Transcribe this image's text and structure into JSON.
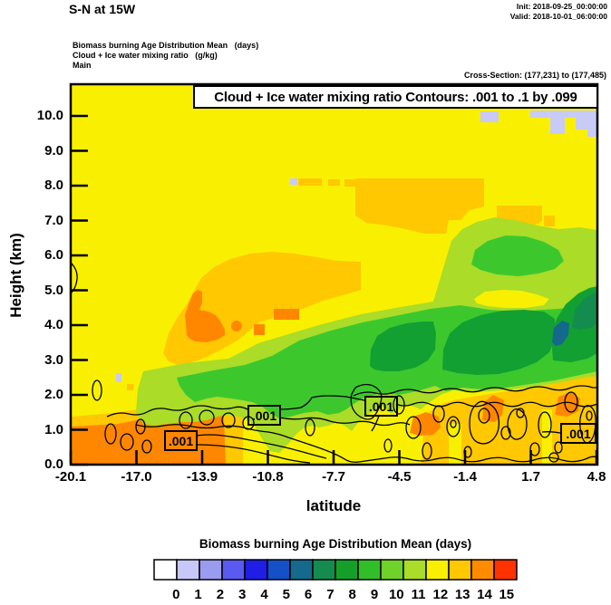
{
  "header": {
    "title": "S-N at 15W",
    "init": "Init: 2018-09-25_00:00:00",
    "valid": "Valid: 2018-10-01_06:00:00",
    "field_mean": "Biomass burning Age Distribution Mean   (days)",
    "field_contour": "Cloud + Ice water mixing ratio   (g/kg)",
    "grid": "Main",
    "cross_section": "Cross-Section: (177,231) to (177,485)"
  },
  "plot": {
    "title": "Cloud + Ice water mixing ratio Contours: .001 to .1 by .099",
    "xlabel": "latitude",
    "ylabel": "Height (km)",
    "x_tick_labels": [
      "-20.1",
      "-17.0",
      "-13.9",
      "-10.8",
      "-7.7",
      "-4.5",
      "-1.4",
      "1.7",
      "4.8"
    ],
    "y_tick_labels": [
      "0.0",
      "1.0",
      "2.0",
      "3.0",
      "4.0",
      "5.0",
      "6.0",
      "7.0",
      "8.0",
      "9.0",
      "10.0"
    ],
    "contour_label": ".001"
  },
  "colorbar": {
    "title": "Biomass burning Age Distribution Mean  (days)",
    "tick_labels": [
      "0",
      "1",
      "2",
      "3",
      "4",
      "5",
      "6",
      "7",
      "8",
      "9",
      "10",
      "11",
      "12",
      "13",
      "14",
      "15"
    ],
    "colors": [
      "#FFFFFF",
      "#C8C8F8",
      "#9B9BF0",
      "#5A5AF0",
      "#1E1EE6",
      "#1450C8",
      "#14698C",
      "#148C50",
      "#14A028",
      "#32BE28",
      "#6ED228",
      "#AADC28",
      "#F8F000",
      "#FFC800",
      "#FF8C00",
      "#FF3200"
    ]
  },
  "chart_data": {
    "type": "heatmap",
    "title": "Cloud + Ice water mixing ratio Contours: .001 to .1 by .099",
    "suptitle": "S-N at 15W",
    "xlabel": "latitude",
    "ylabel": "Height (km)",
    "xlim": [
      -20.1,
      4.8
    ],
    "ylim": [
      0.0,
      10.0
    ],
    "x_ticks": [
      -20.1,
      -17.0,
      -13.9,
      -10.8,
      -7.7,
      -4.5,
      -1.4,
      1.7,
      4.8
    ],
    "y_ticks": [
      0.0,
      1.0,
      2.0,
      3.0,
      4.0,
      5.0,
      6.0,
      7.0,
      8.0,
      9.0,
      10.0
    ],
    "fill_field": {
      "name": "Biomass burning Age Distribution Mean",
      "units": "days",
      "scale_values": [
        0,
        1,
        2,
        3,
        4,
        5,
        6,
        7,
        8,
        9,
        10,
        11,
        12,
        13,
        14,
        15
      ],
      "scale_colors": [
        "#FFFFFF",
        "#C8C8F8",
        "#9B9BF0",
        "#5A5AF0",
        "#1E1EE6",
        "#1450C8",
        "#14698C",
        "#148C50",
        "#14A028",
        "#32BE28",
        "#6ED228",
        "#AADC28",
        "#F8F000",
        "#FFC800",
        "#FF8C00",
        "#FF3200"
      ]
    },
    "line_field": {
      "name": "Cloud + Ice water mixing ratio",
      "units": "g/kg",
      "levels": [
        0.001,
        0.1
      ],
      "label_shown": ".001",
      "label_positions_lat_km": [
        [
          -15.3,
          0.75
        ],
        [
          -11.3,
          1.45
        ],
        [
          -5.9,
          1.7
        ],
        [
          3.5,
          0.85
        ]
      ]
    },
    "regions": [
      {
        "value_days": "10-11 (yellow)",
        "extent": "background over most of the section above ~2 km"
      },
      {
        "value_days": "7-10 (greens)",
        "extent": "plume band rising from ~1 km at lat -16 to 3-6 km at lat 4.8; darkest core ~8 days near 3.5-4 km between lat -6 and 4.8"
      },
      {
        "value_days": "5-6 (teal)",
        "extent": "small core near lat 3, 3.5 km"
      },
      {
        "value_days": "7-9 (greens)",
        "extent": "upper patch 5-6.5 km between lat -2 and 4.8"
      },
      {
        "value_days": "12-13 (gold)",
        "extent": "patches 7-8.5 km lat -11 to -4.5; mid-level lat -14, 4-5.5 km; near-surface strips at both ends"
      },
      {
        "value_days": "13-14 (orange)",
        "extent": "blob near lat -13.5, 3.5-4.5 km; surface layer 0-1 km lat -20.1 to -14.5; small surface cells lat -4 to 4"
      },
      {
        "value_days": "0-1 (lavender)",
        "extent": "thin patches near 9.5-10 km between lat 0 and 4.8"
      }
    ],
    "grid": false,
    "legend_position": "bottom colorbar"
  }
}
